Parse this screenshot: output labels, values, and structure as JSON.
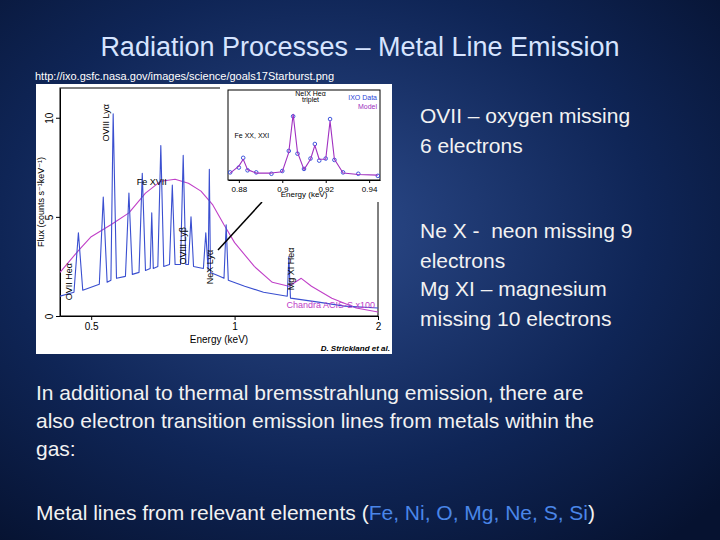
{
  "slide": {
    "title": "Radiation Processes – Metal Line Emission",
    "source_url": "http://ixo.gsfc.nasa.gov/images/science/goals17Starburst.png",
    "bullets": [
      [
        "OVII – oxygen missing",
        "6 electrons"
      ],
      [
        "Ne X -  neon missing 9",
        "electrons"
      ],
      [
        "Mg XI – magnesium",
        "missing 10 electrons"
      ]
    ],
    "paragraph": [
      "In additional to thermal bremsstrahlung emission, there are",
      "also electron transition emission lines from metals within the",
      "gas:"
    ],
    "closing": {
      "before": "Metal lines from relevant elements (",
      "highlight": "Fe, Ni, O, Mg, Ne, S, Si",
      "after": ")"
    }
  },
  "chart_data": [
    {
      "type": "line",
      "xlabel": "Energy (keV)",
      "ylabel": "Flux (counts s⁻¹keV⁻¹)",
      "log": "x",
      "xlim": [
        0.43,
        2
      ],
      "xticks": [
        0.5,
        1,
        2
      ],
      "ylim": [
        0,
        11.5
      ],
      "yticks": [
        0,
        5,
        10
      ],
      "legend": "lower right",
      "series": [
        {
          "name": "Chandra ACIS-S x100",
          "color": "#c040c8",
          "x": [
            0.43,
            0.47,
            0.5,
            0.55,
            0.6,
            0.65,
            0.7,
            0.75,
            0.8,
            0.85,
            0.9,
            0.95,
            1.0,
            1.1,
            1.2,
            1.3,
            1.38,
            1.45,
            1.6,
            1.8,
            2.0
          ],
          "values": [
            2.2,
            3.3,
            4.0,
            4.6,
            5.2,
            6.2,
            6.8,
            6.9,
            6.7,
            6.3,
            5.6,
            4.6,
            3.7,
            2.5,
            1.7,
            1.5,
            1.9,
            1.5,
            0.9,
            0.4,
            0.2
          ]
        },
        {
          "color": "#3a4fd0",
          "x": [
            0.43,
            0.46,
            0.47,
            0.48,
            0.52,
            0.53,
            0.54,
            0.55,
            0.556,
            0.565,
            0.59,
            0.6,
            0.61,
            0.63,
            0.64,
            0.65,
            0.665,
            0.67,
            0.675,
            0.69,
            0.7,
            0.71,
            0.73,
            0.74,
            0.75,
            0.77,
            0.78,
            0.79,
            0.8,
            0.81,
            0.82,
            0.86,
            0.87,
            0.88,
            0.885,
            0.89,
            0.93,
            0.95,
            0.96,
            0.97,
            1.05,
            1.15,
            1.29,
            1.3,
            1.31,
            1.5,
            1.7,
            2.0
          ],
          "values": [
            1.0,
            1.2,
            4.2,
            1.3,
            1.6,
            6.0,
            1.7,
            1.8,
            10.2,
            1.9,
            2.0,
            6.2,
            2.1,
            2.2,
            7.2,
            2.3,
            2.4,
            5.2,
            2.4,
            2.5,
            8.6,
            2.5,
            2.6,
            6.6,
            2.6,
            2.6,
            8.1,
            2.6,
            2.6,
            5.0,
            2.5,
            2.4,
            4.2,
            2.3,
            7.4,
            2.2,
            2.0,
            1.9,
            4.6,
            1.8,
            1.5,
            1.2,
            1.0,
            3.0,
            0.9,
            0.7,
            0.5,
            0.4
          ]
        }
      ],
      "line_labels": [
        {
          "text": "OVII Heα",
          "x": 0.455,
          "y": 0.8
        },
        {
          "text": "OVIII Lyα",
          "x": 0.545,
          "y": 8.8
        },
        {
          "text": "OVIII Lyβ",
          "x": 0.79,
          "y": 2.6
        },
        {
          "text": "NeX Lyα",
          "x": 0.9,
          "y": 1.6
        },
        {
          "text": "Mg XI Heα",
          "x": 1.33,
          "y": 1.3
        }
      ],
      "labels": [
        {
          "text": "Fe XVII",
          "x": 0.67,
          "y": 6.6
        }
      ],
      "credit": "D. Strickland et al."
    },
    {
      "type": "line",
      "xlabel": "Energy (keV)",
      "xlim": [
        0.875,
        0.945
      ],
      "xticks": [
        0.88,
        0.9,
        0.92,
        0.94
      ],
      "ylim": [
        0,
        13
      ],
      "tick_labels": "x",
      "legend": "upper right",
      "series": [
        {
          "name": "IXO Data",
          "color": "#2a44d8",
          "marker": "circle",
          "line_style": "none",
          "x": [
            0.876,
            0.88,
            0.882,
            0.884,
            0.888,
            0.895,
            0.9,
            0.903,
            0.905,
            0.907,
            0.91,
            0.913,
            0.915,
            0.917,
            0.92,
            0.922,
            0.924,
            0.928,
            0.935,
            0.944
          ],
          "values": [
            1.1,
            1.8,
            3.2,
            1.4,
            1.1,
            0.9,
            1.3,
            4.2,
            9.2,
            3.8,
            1.6,
            3.1,
            5.2,
            2.8,
            3.1,
            8.8,
            2.9,
            1.1,
            0.9,
            0.6
          ]
        },
        {
          "name": "Model",
          "color": "#a030c0",
          "x": [
            0.876,
            0.88,
            0.882,
            0.884,
            0.888,
            0.895,
            0.9,
            0.903,
            0.905,
            0.907,
            0.91,
            0.913,
            0.915,
            0.917,
            0.92,
            0.922,
            0.924,
            0.928,
            0.935,
            0.944
          ],
          "values": [
            1,
            2,
            3,
            1.5,
            1,
            1,
            1.2,
            4,
            9.5,
            4,
            1.5,
            3,
            5,
            3,
            3,
            8.5,
            3,
            1,
            0.8,
            0.7
          ]
        }
      ],
      "labels": [
        {
          "text": "NeIX Heα",
          "x": 0.913,
          "y": 12.2
        },
        {
          "text": "triplet",
          "x": 0.913,
          "y": 11.2
        },
        {
          "text": "Fe XX, XXI",
          "x": 0.886,
          "y": 6
        }
      ]
    }
  ]
}
